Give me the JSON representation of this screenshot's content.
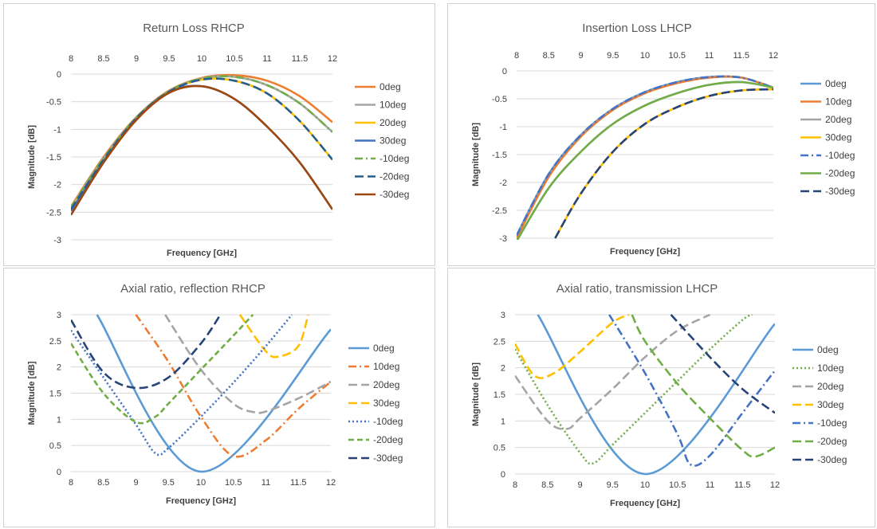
{
  "chart_data": [
    {
      "type": "line",
      "title": "Return Loss RHCP",
      "xlabel": "Frequency [GHz]",
      "ylabel": "Magnitude [dB]",
      "x_axis_position": "top",
      "xlim": [
        8,
        12
      ],
      "ylim": [
        -3,
        0
      ],
      "xticks": [
        "8",
        "8.5",
        "9",
        "9.5",
        "10",
        "10.5",
        "11",
        "11.5",
        "12"
      ],
      "yticks": [
        "0",
        "-0.5",
        "-1",
        "-1.5",
        "-2",
        "-2.5",
        "-3"
      ],
      "grid": true,
      "legend": "right",
      "series": [
        {
          "name": "0deg",
          "color": "#ED7D31",
          "dash": "solid",
          "x": [
            8,
            8.5,
            9,
            9.5,
            10,
            10.5,
            11,
            11.5,
            12
          ],
          "y": [
            -2.4,
            -1.5,
            -0.78,
            -0.3,
            -0.07,
            -0.02,
            -0.12,
            -0.4,
            -0.87
          ]
        },
        {
          "name": "10deg",
          "color": "#A5A5A5",
          "dash": "solid",
          "x": [
            8,
            8.5,
            9,
            9.5,
            10,
            10.5,
            11,
            11.5,
            12
          ],
          "y": [
            -2.42,
            -1.52,
            -0.79,
            -0.31,
            -0.08,
            -0.05,
            -0.2,
            -0.53,
            -1.05
          ]
        },
        {
          "name": "20deg",
          "color": "#FFC000",
          "dash": "solid",
          "x": [
            8,
            8.5,
            9,
            9.5,
            10,
            10.5,
            11,
            11.5,
            12
          ],
          "y": [
            -2.45,
            -1.55,
            -0.8,
            -0.32,
            -0.1,
            -0.12,
            -0.35,
            -0.85,
            -1.55
          ]
        },
        {
          "name": "30deg",
          "color": "#4472C4",
          "dash": "solid",
          "x": [
            8,
            8.5,
            9,
            9.5,
            10,
            10.5,
            11,
            11.5,
            12
          ],
          "y": [
            -2.48,
            -1.57,
            -0.81,
            -0.32,
            -0.22,
            -0.45,
            -0.95,
            -1.6,
            -2.45
          ]
        },
        {
          "name": "-10deg",
          "color": "#70AD47",
          "dash": "dashdot",
          "x": [
            8,
            8.5,
            9,
            9.5,
            10,
            10.5,
            11,
            11.5,
            12
          ],
          "y": [
            -2.42,
            -1.52,
            -0.79,
            -0.31,
            -0.08,
            -0.05,
            -0.2,
            -0.53,
            -1.05
          ]
        },
        {
          "name": "-20deg",
          "color": "#255E91",
          "dash": "longdash",
          "x": [
            8,
            8.5,
            9,
            9.5,
            10,
            10.5,
            11,
            11.5,
            12
          ],
          "y": [
            -2.45,
            -1.55,
            -0.8,
            -0.32,
            -0.1,
            -0.12,
            -0.35,
            -0.85,
            -1.55
          ]
        },
        {
          "name": "-30deg",
          "color": "#9E480E",
          "dash": "solid",
          "x": [
            8,
            8.5,
            9,
            9.5,
            10,
            10.5,
            11,
            11.5,
            12
          ],
          "y": [
            -2.55,
            -1.6,
            -0.83,
            -0.34,
            -0.22,
            -0.45,
            -0.95,
            -1.6,
            -2.45
          ]
        }
      ]
    },
    {
      "type": "line",
      "title": "Insertion Loss LHCP",
      "xlabel": "Frequency [GHz]",
      "ylabel": "Magnitude [dB]",
      "x_axis_position": "top",
      "xlim": [
        8,
        12
      ],
      "ylim": [
        -3,
        0
      ],
      "xticks": [
        "8",
        "8.5",
        "9",
        "9.5",
        "10",
        "10.5",
        "11",
        "11.5",
        "12"
      ],
      "yticks": [
        "0",
        "-0.5",
        "-1",
        "-1.5",
        "-2",
        "-2.5",
        "-3"
      ],
      "grid": true,
      "legend": "right",
      "series": [
        {
          "name": "0deg",
          "color": "#5B9BD5",
          "dash": "solid",
          "x": [
            8,
            8.5,
            9,
            9.5,
            10,
            10.5,
            11,
            11.5,
            12
          ],
          "y": [
            -2.95,
            -1.85,
            -1.15,
            -0.68,
            -0.38,
            -0.2,
            -0.11,
            -0.12,
            -0.3
          ]
        },
        {
          "name": "10deg",
          "color": "#ED7D31",
          "dash": "solid",
          "x": [
            8,
            8.5,
            9,
            9.5,
            10,
            10.5,
            11,
            11.5,
            12
          ],
          "y": [
            -3.0,
            -1.9,
            -1.18,
            -0.7,
            -0.4,
            -0.22,
            -0.12,
            -0.12,
            -0.3
          ]
        },
        {
          "name": "20deg",
          "color": "#A5A5A5",
          "dash": "solid",
          "x": [
            8,
            8.5,
            9,
            9.5,
            10,
            10.5,
            11,
            11.5,
            12
          ],
          "y": [
            -3.05,
            -2.1,
            -1.45,
            -0.95,
            -0.62,
            -0.4,
            -0.25,
            -0.2,
            -0.3
          ]
        },
        {
          "name": "30deg",
          "color": "#FFC000",
          "dash": "solid",
          "x": [
            8.6,
            9,
            9.5,
            10,
            10.5,
            11,
            11.5,
            12
          ],
          "y": [
            -3.0,
            -2.2,
            -1.45,
            -0.95,
            -0.65,
            -0.45,
            -0.35,
            -0.33
          ]
        },
        {
          "name": "-10deg",
          "color": "#4472C4",
          "dash": "dashdot",
          "x": [
            8,
            8.5,
            9,
            9.5,
            10,
            10.5,
            11,
            11.5,
            12
          ],
          "y": [
            -2.95,
            -1.85,
            -1.15,
            -0.68,
            -0.38,
            -0.2,
            -0.11,
            -0.12,
            -0.3
          ]
        },
        {
          "name": "-20deg",
          "color": "#70AD47",
          "dash": "solid",
          "x": [
            8,
            8.5,
            9,
            9.5,
            10,
            10.5,
            11,
            11.5,
            12
          ],
          "y": [
            -3.05,
            -2.1,
            -1.45,
            -0.95,
            -0.62,
            -0.4,
            -0.25,
            -0.2,
            -0.3
          ]
        },
        {
          "name": "-30deg",
          "color": "#264478",
          "dash": "longdash",
          "x": [
            8.6,
            9,
            9.5,
            10,
            10.5,
            11,
            11.5,
            12
          ],
          "y": [
            -3.0,
            -2.2,
            -1.45,
            -0.95,
            -0.65,
            -0.45,
            -0.35,
            -0.33
          ]
        }
      ]
    },
    {
      "type": "line",
      "title": "Axial ratio, reflection RHCP",
      "xlabel": "Frequency [GHz]",
      "ylabel": "Magnitude [dB]",
      "x_axis_position": "bottom",
      "xlim": [
        8,
        12
      ],
      "ylim": [
        0,
        3
      ],
      "xticks": [
        "8",
        "8.5",
        "9",
        "9.5",
        "10",
        "10.5",
        "11",
        "11.5",
        "12"
      ],
      "yticks": [
        "3",
        "2.5",
        "2",
        "1.5",
        "1",
        "0.5",
        "0"
      ],
      "grid": true,
      "legend": "right",
      "series": [
        {
          "name": "0deg",
          "color": "#5B9BD5",
          "dash": "solid",
          "x": [
            8.4,
            10,
            12
          ],
          "y": [
            3.0,
            0.0,
            2.72
          ]
        },
        {
          "name": "10deg",
          "color": "#ED7D31",
          "dash": "dashdot",
          "x": [
            9.0,
            9.5,
            10,
            10.5,
            11,
            11.5,
            12
          ],
          "y": [
            3.0,
            2.1,
            1.05,
            0.3,
            0.6,
            1.2,
            1.72
          ]
        },
        {
          "name": "20deg",
          "color": "#A5A5A5",
          "dash": "longdash",
          "x": [
            9.45,
            10,
            10.5,
            10.8,
            11,
            11.5,
            12
          ],
          "y": [
            3.0,
            1.95,
            1.3,
            1.14,
            1.15,
            1.4,
            1.72
          ]
        },
        {
          "name": "30deg",
          "color": "#FFC000",
          "dash": "longdash",
          "x": [
            10.6,
            11,
            11.2,
            11.5,
            11.65
          ],
          "y": [
            3.0,
            2.3,
            2.2,
            2.4,
            3.0
          ]
        },
        {
          "name": "-10deg",
          "color": "#4472C4",
          "dash": "dotted",
          "x": [
            8,
            8.5,
            9,
            9.3,
            9.5,
            10,
            10.5,
            11,
            11.4
          ],
          "y": [
            2.7,
            1.8,
            0.9,
            0.35,
            0.45,
            1.05,
            1.7,
            2.4,
            3.0
          ]
        },
        {
          "name": "-20deg",
          "color": "#70AD47",
          "dash": "dashed",
          "x": [
            8,
            8.5,
            9,
            9.3,
            9.5,
            10,
            10.5,
            10.8
          ],
          "y": [
            2.45,
            1.5,
            0.95,
            1.05,
            1.3,
            1.95,
            2.6,
            3.0
          ]
        },
        {
          "name": "-30deg",
          "color": "#264478",
          "dash": "longdash",
          "x": [
            8,
            8.5,
            9,
            9.5,
            10,
            10.3
          ],
          "y": [
            2.9,
            1.9,
            1.6,
            1.8,
            2.45,
            3.0
          ]
        }
      ]
    },
    {
      "type": "line",
      "title": "Axial ratio, transmission LHCP",
      "xlabel": "Frequency [GHz]",
      "ylabel": "Magnitude [dB]",
      "x_axis_position": "bottom",
      "xlim": [
        8,
        12
      ],
      "ylim": [
        0,
        3
      ],
      "xticks": [
        "8",
        "8.5",
        "9",
        "9.5",
        "10",
        "10.5",
        "11",
        "11.5",
        "12"
      ],
      "yticks": [
        "3",
        "2.5",
        "2",
        "1.5",
        "1",
        "0.5",
        "0"
      ],
      "grid": true,
      "legend": "right",
      "series": [
        {
          "name": "0deg",
          "color": "#5B9BD5",
          "dash": "solid",
          "x": [
            8.35,
            10,
            12
          ],
          "y": [
            3.0,
            0.0,
            2.83
          ]
        },
        {
          "name": "10deg",
          "color": "#70AD47",
          "dash": "dotted",
          "x": [
            8,
            8.5,
            9,
            9.2,
            9.5,
            10,
            10.5,
            11,
            11.5,
            11.65
          ],
          "y": [
            2.35,
            1.3,
            0.4,
            0.2,
            0.55,
            1.15,
            1.75,
            2.35,
            2.9,
            3.0
          ]
        },
        {
          "name": "20deg",
          "color": "#A5A5A5",
          "dash": "longdash",
          "x": [
            8,
            8.5,
            8.8,
            9,
            9.5,
            10,
            10.5,
            11
          ],
          "y": [
            1.85,
            1.0,
            0.85,
            1.05,
            1.6,
            2.2,
            2.7,
            3.0
          ]
        },
        {
          "name": "30deg",
          "color": "#FFC000",
          "dash": "longdash",
          "x": [
            8,
            8.3,
            8.6,
            9,
            9.5,
            9.75
          ],
          "y": [
            2.45,
            1.85,
            1.9,
            2.3,
            2.85,
            3.0
          ]
        },
        {
          "name": "-10deg",
          "color": "#4472C4",
          "dash": "dashdot",
          "x": [
            9.45,
            10,
            10.5,
            10.7,
            11,
            11.5,
            12
          ],
          "y": [
            3.0,
            1.9,
            0.75,
            0.18,
            0.35,
            1.15,
            1.95
          ]
        },
        {
          "name": "-20deg",
          "color": "#70AD47",
          "dash": "longdash",
          "x": [
            9.8,
            10,
            10.5,
            11,
            11.5,
            11.7,
            12
          ],
          "y": [
            3.0,
            2.5,
            1.7,
            1.05,
            0.45,
            0.33,
            0.5
          ]
        },
        {
          "name": "-30deg",
          "color": "#264478",
          "dash": "longdash",
          "x": [
            10.4,
            11,
            11.5,
            12
          ],
          "y": [
            3.0,
            2.2,
            1.6,
            1.15
          ]
        }
      ]
    }
  ]
}
